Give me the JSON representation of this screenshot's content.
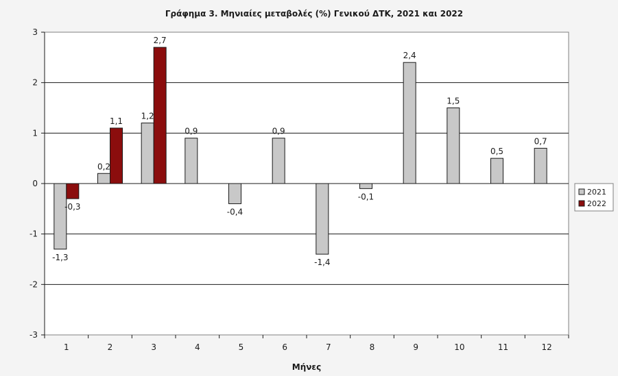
{
  "chart_data": {
    "type": "bar",
    "title": "Γράφημα 3. Μηνιαίες μεταβολές (%) Γενικού ΔΤΚ, 2021 και 2022",
    "xlabel": "Μήνες",
    "ylabel": "",
    "categories": [
      "1",
      "2",
      "3",
      "4",
      "5",
      "6",
      "7",
      "8",
      "9",
      "10",
      "11",
      "12"
    ],
    "series": [
      {
        "name": "2021",
        "color": "#c8c8c8",
        "values": [
          -1.3,
          0.2,
          1.2,
          0.9,
          -0.4,
          0.9,
          -1.4,
          -0.1,
          2.4,
          1.5,
          0.5,
          0.7
        ],
        "labels": [
          "-1,3",
          "0,2",
          "1,2",
          "0,9",
          "-0,4",
          "0,9",
          "-1,4",
          "-0,1",
          "2,4",
          "1,5",
          "0,5",
          "0,7"
        ]
      },
      {
        "name": "2022",
        "color": "#8b0d0d",
        "values": [
          -0.3,
          1.1,
          2.7,
          null,
          null,
          null,
          null,
          null,
          null,
          null,
          null,
          null
        ],
        "labels": [
          "-0,3",
          "1,1",
          "2,7",
          "",
          "",
          "",
          "",
          "",
          "",
          "",
          "",
          ""
        ]
      }
    ],
    "ylim": [
      -3,
      3
    ],
    "yticks": [
      "-3",
      "-2",
      "-1",
      "0",
      "1",
      "2",
      "3"
    ],
    "grid": true,
    "legend_position": "right"
  }
}
